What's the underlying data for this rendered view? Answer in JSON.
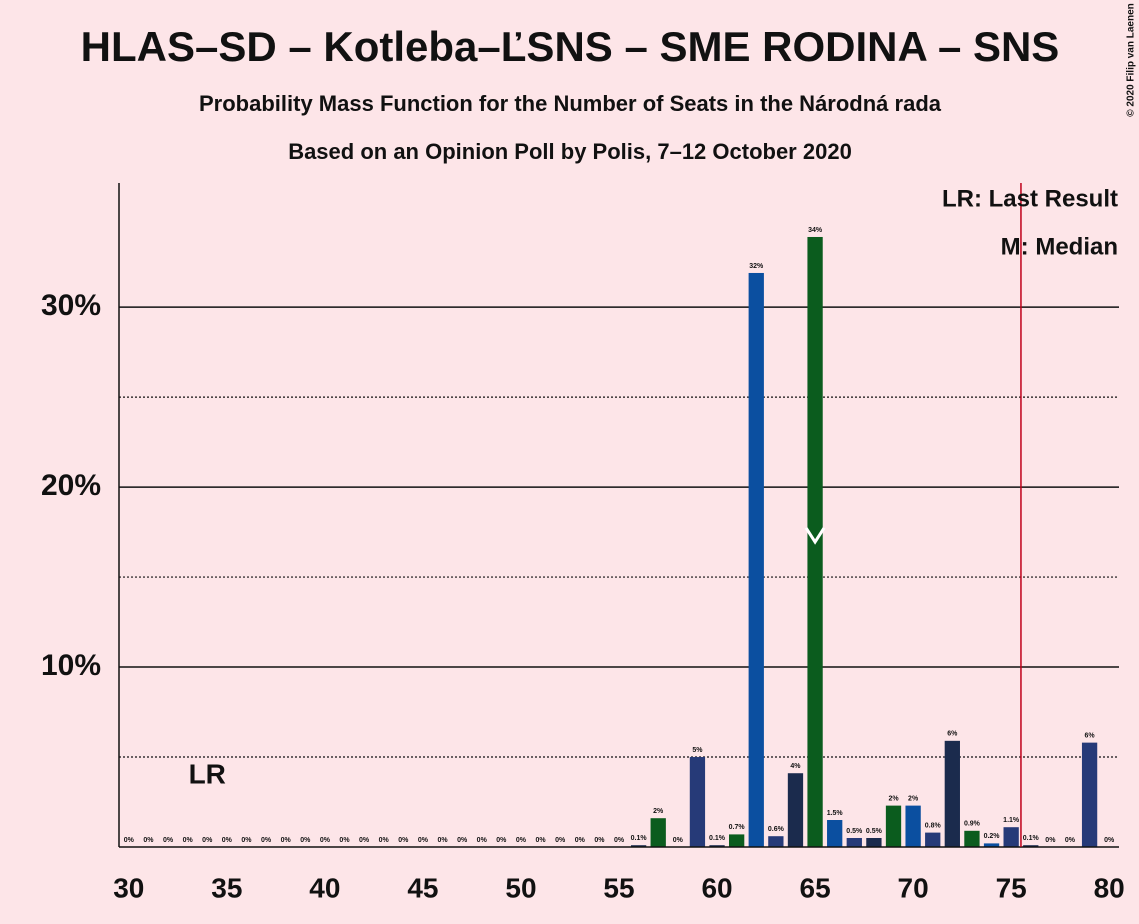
{
  "chart_data": {
    "type": "bar",
    "title": "HLAS–SD – Kotleba–ĽSNS – SME RODINA – SNS",
    "subtitle": "Probability Mass Function for the Number of Seats in the Národná rada",
    "subtitle2": "Based on an Opinion Poll by Polis, 7–12 October 2020",
    "copyright": "© 2020 Filip van Laenen",
    "x": [
      30,
      31,
      32,
      33,
      34,
      35,
      36,
      37,
      38,
      39,
      40,
      41,
      42,
      43,
      44,
      45,
      46,
      47,
      48,
      49,
      50,
      51,
      52,
      53,
      54,
      55,
      56,
      57,
      58,
      59,
      60,
      61,
      62,
      63,
      64,
      65,
      66,
      67,
      68,
      69,
      70,
      71,
      72,
      73,
      74,
      75,
      76,
      77,
      78,
      79,
      80
    ],
    "values": [
      0,
      0,
      0,
      0,
      0,
      0,
      0,
      0,
      0,
      0,
      0,
      0,
      0,
      0,
      0,
      0,
      0,
      0,
      0,
      0,
      0,
      0,
      0,
      0,
      0,
      0,
      0.1,
      1.6,
      0,
      5.0,
      0.1,
      0.7,
      31.9,
      0.6,
      4.1,
      33.9,
      1.5,
      0.5,
      0.5,
      2.3,
      2.3,
      0.8,
      5.9,
      0.9,
      0.2,
      1.1,
      0.1,
      0,
      0,
      5.8,
      0
    ],
    "value_labels": [
      "0%",
      "0%",
      "0%",
      "0%",
      "0%",
      "0%",
      "0%",
      "0%",
      "0%",
      "0%",
      "0%",
      "0%",
      "0%",
      "0%",
      "0%",
      "0%",
      "0%",
      "0%",
      "0%",
      "0%",
      "0%",
      "0%",
      "0%",
      "0%",
      "0%",
      "0%",
      "0.1%",
      "2%",
      "0%",
      "5%",
      "0.1%",
      "0.7%",
      "32%",
      "0.6%",
      "4%",
      "34%",
      "1.5%",
      "0.5%",
      "0.5%",
      "2%",
      "2%",
      "0.8%",
      "6%",
      "0.9%",
      "0.2%",
      "1.1%",
      "0.1%",
      "0%",
      "0%",
      "6%",
      "0%"
    ],
    "color_cycle": [
      "#0b4fa0",
      "#263a78",
      "#1b2b4d",
      "#0b5c1e"
    ],
    "xlim": [
      29.5,
      80.5
    ],
    "xticks": [
      30,
      35,
      40,
      45,
      50,
      55,
      60,
      65,
      70,
      75,
      80
    ],
    "ylim": [
      0,
      36.9
    ],
    "yticks": [
      {
        "value": 10,
        "label": "10%"
      },
      {
        "value": 20,
        "label": "20%"
      },
      {
        "value": 30,
        "label": "30%"
      }
    ],
    "minor_yticks": [
      5,
      15,
      25
    ],
    "grid": true,
    "last_result": 34,
    "last_result_label": "LR",
    "median": 65,
    "majority_line": 75.5,
    "majority_color": "#c0001a",
    "legend": [
      "LR: Last Result",
      "M: Median"
    ]
  }
}
